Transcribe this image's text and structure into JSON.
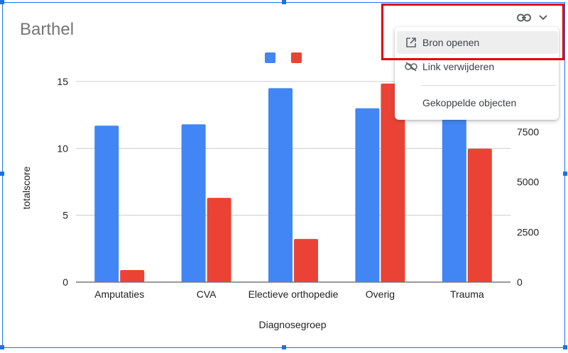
{
  "chart_title": "Barthel",
  "menu": {
    "open_source": "Bron openen",
    "remove_link": "Link verwijderen",
    "linked_objects": "Gekoppelde objecten"
  },
  "icons": {
    "chip_link": "link-icon",
    "chip_chevron": "chevron-down-icon",
    "open_source": "open-in-new-icon",
    "remove_link": "link-off-icon"
  },
  "colors": {
    "series_1": "#4285f4",
    "series_2": "#ea4335",
    "selection": "#1a73e8",
    "highlight": "#e10000"
  },
  "chart_data": {
    "type": "bar",
    "categories": [
      "Amputaties",
      "CVA",
      "Electieve orthopedie",
      "Overig",
      "Trauma"
    ],
    "series": [
      {
        "values": [
          11.7,
          11.8,
          14.5,
          13.0,
          12.8
        ],
        "axis": "left"
      },
      {
        "values": [
          600,
          4200,
          2150,
          9900,
          6650
        ],
        "axis": "right"
      }
    ],
    "ylabel": "totalscore",
    "xlabel": "Diagnosegroep",
    "ylim": [
      0,
      15
    ],
    "yticks": [
      "0",
      "5",
      "10",
      "15"
    ],
    "y2lim": [
      0,
      10000
    ],
    "y2ticks": [
      "0",
      "2500",
      "5000",
      "7500"
    ],
    "grid": true,
    "legend": "top"
  }
}
